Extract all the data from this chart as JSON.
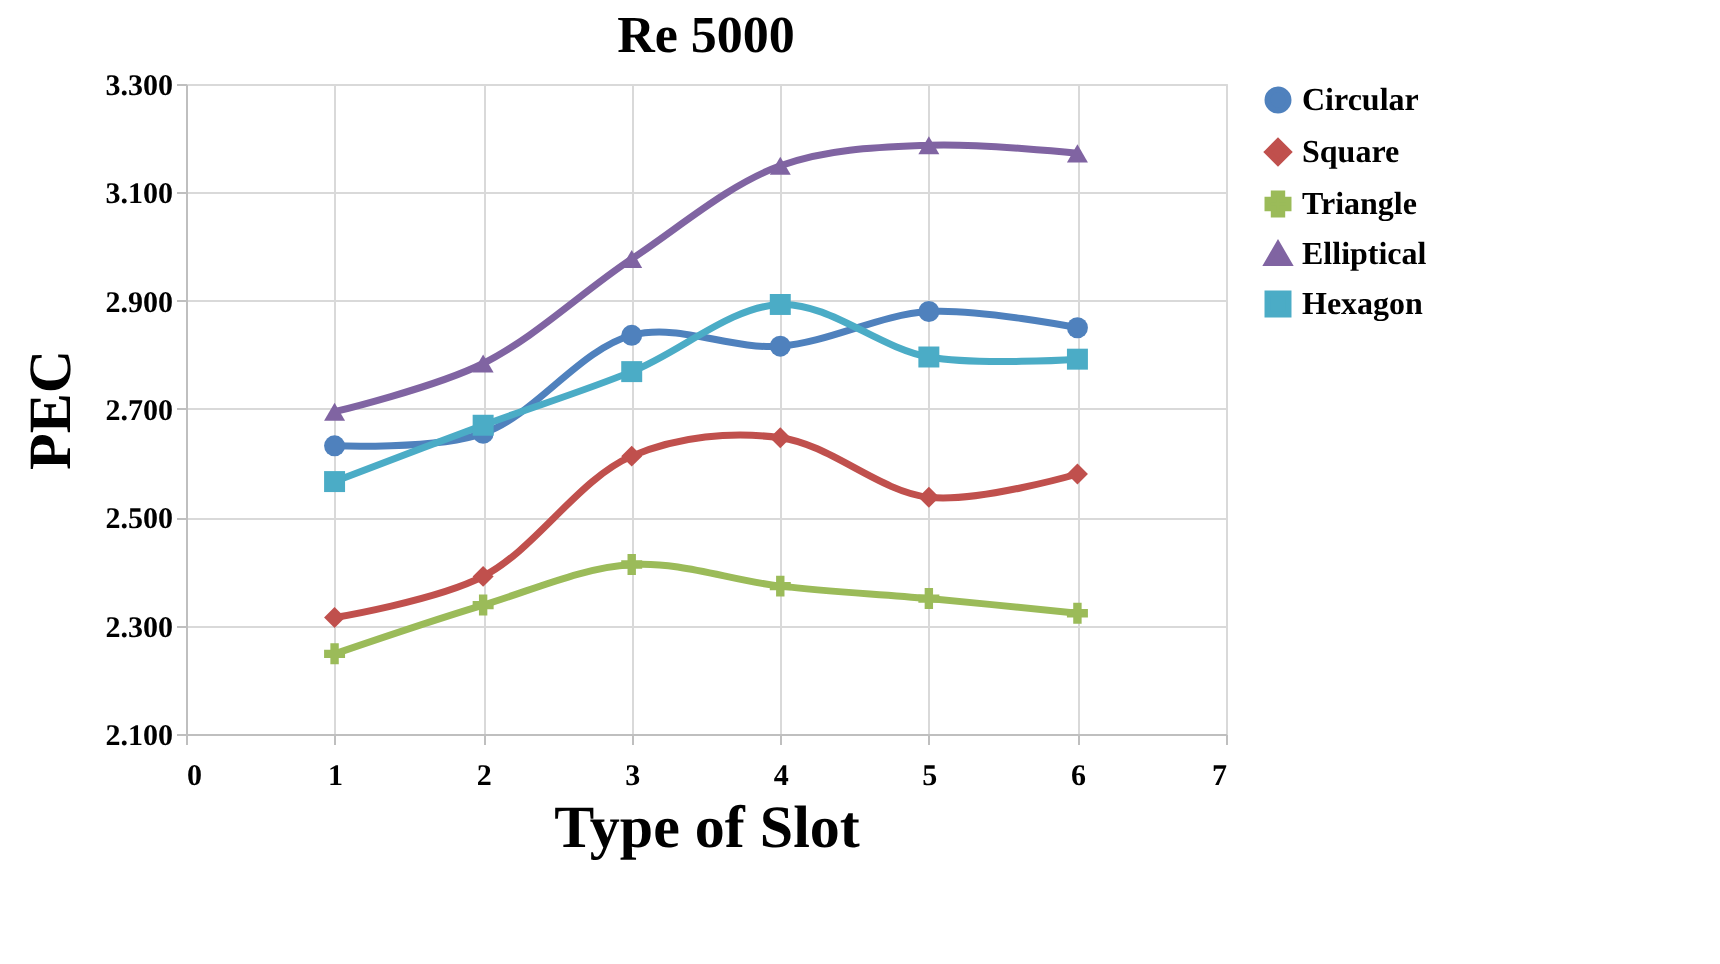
{
  "chart_data": {
    "type": "line",
    "title": "Re 5000",
    "xlabel": "Type of Slot",
    "ylabel": "PEC",
    "x": [
      1,
      2,
      3,
      4,
      5,
      6
    ],
    "xlim": [
      0,
      7
    ],
    "xticks": [
      0,
      1,
      2,
      3,
      4,
      5,
      6,
      7
    ],
    "ylim": [
      2.1,
      3.3
    ],
    "yticks": [
      {
        "value": 2.1,
        "label": "2.100"
      },
      {
        "value": 2.3,
        "label": "2.300"
      },
      {
        "value": 2.5,
        "label": "2.500"
      },
      {
        "value": 2.7,
        "label": "2.700"
      },
      {
        "value": 2.9,
        "label": "2.900"
      },
      {
        "value": 3.1,
        "label": "3.100"
      },
      {
        "value": 3.3,
        "label": "3.300"
      }
    ],
    "grid": true,
    "legend": "right",
    "line_style": "solid",
    "series": [
      {
        "name": "Circular",
        "color": "#4f81bd",
        "marker": "circle",
        "values": [
          2.632,
          2.655,
          2.836,
          2.816,
          2.88,
          2.85
        ]
      },
      {
        "name": "Square",
        "color": "#c0504d",
        "marker": "diamond",
        "values": [
          2.315,
          2.391,
          2.613,
          2.647,
          2.537,
          2.58
        ]
      },
      {
        "name": "Triangle",
        "color": "#9bbb59",
        "marker": "cross",
        "values": [
          2.248,
          2.338,
          2.413,
          2.373,
          2.35,
          2.323
        ]
      },
      {
        "name": "Elliptical",
        "color": "#8064a2",
        "marker": "triangle",
        "values": [
          2.695,
          2.784,
          2.977,
          3.149,
          3.187,
          3.172
        ]
      },
      {
        "name": "Hexagon",
        "color": "#4bacc6",
        "marker": "square",
        "values": [
          2.566,
          2.67,
          2.769,
          2.893,
          2.796,
          2.792
        ]
      }
    ]
  }
}
